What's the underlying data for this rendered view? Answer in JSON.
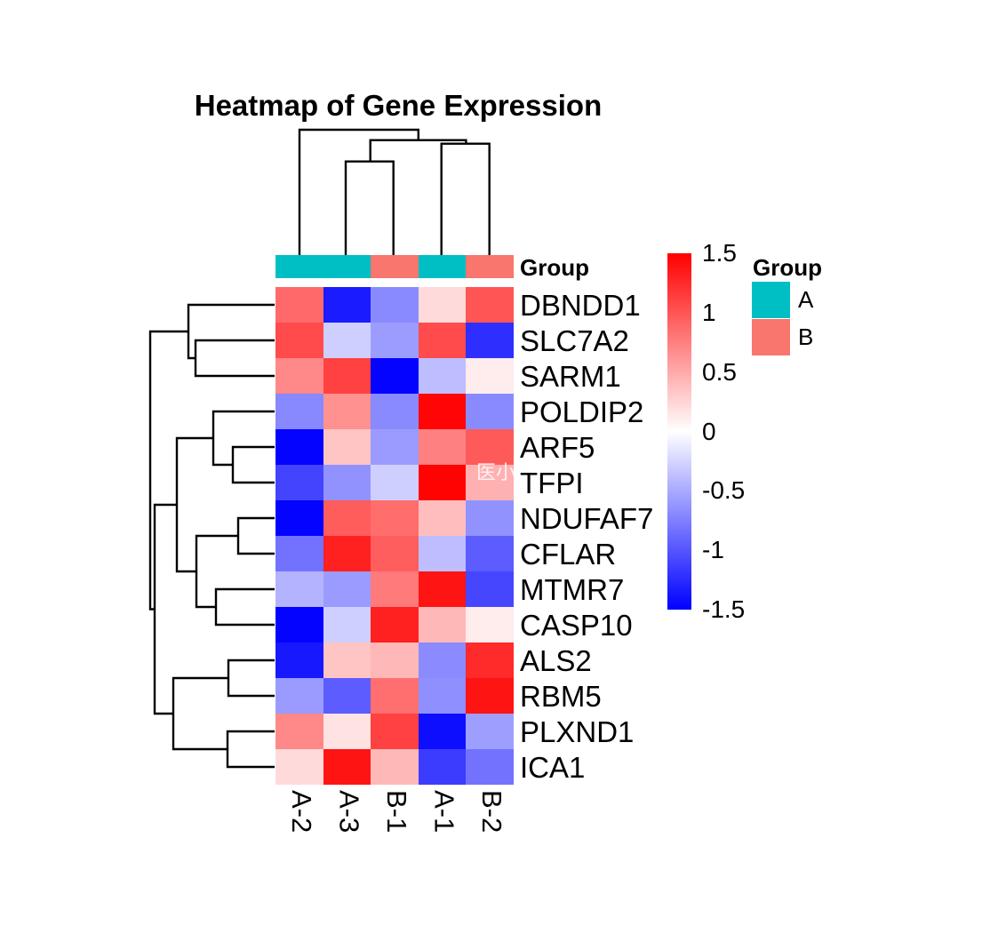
{
  "title": "Heatmap of Gene Expression",
  "watermark_text": "医小",
  "annotation_bar": {
    "label": "Group",
    "values": [
      "A",
      "A",
      "B",
      "A",
      "B"
    ]
  },
  "group_colors": {
    "A": "#00BFC4",
    "B": "#F8766D"
  },
  "heat_colors": {
    "high": "#FF0000",
    "mid": "#FFFFFF",
    "low": "#0000FF"
  },
  "colorbar": {
    "tick_labels": [
      "1.5",
      "1",
      "0.5",
      "0",
      "-0.5",
      "-1",
      "-1.5"
    ],
    "tick_values": [
      1.5,
      1,
      0.5,
      0,
      -0.5,
      -1,
      -1.5
    ]
  },
  "group_legend": {
    "title": "Group",
    "items": [
      {
        "label": "A",
        "color": "#00BFC4"
      },
      {
        "label": "B",
        "color": "#F8766D"
      }
    ]
  },
  "chart_data": {
    "type": "heatmap",
    "title": "Heatmap of Gene Expression",
    "columns": [
      "A-2",
      "A-3",
      "B-1",
      "A-1",
      "B-2"
    ],
    "rows": [
      "DBNDD1",
      "SLC7A2",
      "SARM1",
      "POLDIP2",
      "ARF5",
      "TFPI",
      "NDUFAF7",
      "CFLAR",
      "MTMR7",
      "CASP10",
      "ALS2",
      "RBM5",
      "PLXND1",
      "ICA1"
    ],
    "values": [
      [
        0.88,
        -1.34,
        -0.69,
        0.22,
        1.0
      ],
      [
        1.06,
        -0.28,
        -0.58,
        1.06,
        -1.23
      ],
      [
        0.7,
        1.12,
        -1.48,
        -0.39,
        0.11
      ],
      [
        -0.7,
        0.65,
        -0.69,
        1.47,
        -0.69
      ],
      [
        -1.48,
        0.35,
        -0.59,
        0.75,
        0.97
      ],
      [
        -1.1,
        -0.64,
        -0.28,
        1.49,
        0.46
      ],
      [
        -1.48,
        0.96,
        0.86,
        0.39,
        -0.64
      ],
      [
        -0.83,
        1.31,
        0.95,
        -0.39,
        -0.96
      ],
      [
        -0.45,
        -0.59,
        0.78,
        1.38,
        -1.09
      ],
      [
        -1.48,
        -0.28,
        1.31,
        0.42,
        0.11
      ],
      [
        -1.36,
        0.35,
        0.42,
        -0.68,
        1.25
      ],
      [
        -0.59,
        -0.96,
        0.85,
        -0.66,
        1.38
      ],
      [
        0.7,
        0.17,
        1.12,
        -1.42,
        -0.57
      ],
      [
        0.22,
        1.38,
        0.42,
        -1.15,
        -0.83
      ]
    ],
    "zlim": [
      -1.5,
      1.5
    ],
    "colorscale": "blue-white-red",
    "column_annotation": {
      "name": "Group",
      "values": [
        "A",
        "A",
        "B",
        "A",
        "B"
      ]
    },
    "row_dendrogram": true,
    "column_dendrogram": true,
    "legend_position": "right"
  }
}
